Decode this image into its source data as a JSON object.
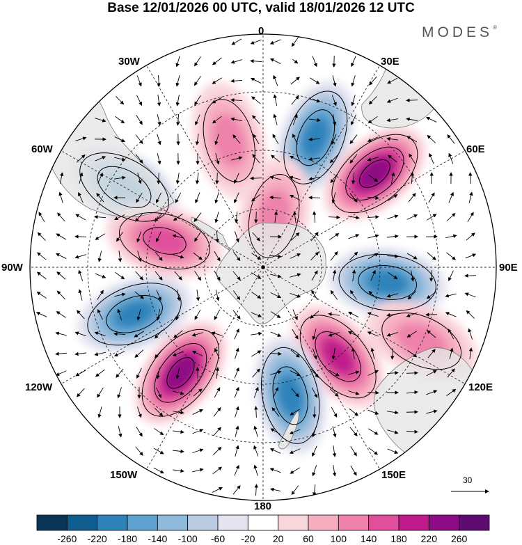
{
  "title": "Base 12/01/2026 00 UTC, valid 18/01/2026 12 UTC",
  "brand": "MODES",
  "brand_mark": "®",
  "longitude_labels": {
    "lon_0": "0",
    "lon_30E": "30E",
    "lon_60E": "60E",
    "lon_90E": "90E",
    "lon_120E": "120E",
    "lon_150E": "150E",
    "lon_180": "180",
    "lon_150W": "150W",
    "lon_120W": "120W",
    "lon_90W": "90W",
    "lon_60W": "60W",
    "lon_30W": "30W"
  },
  "vector_reference": {
    "value": "30"
  },
  "colorbar": {
    "ticks": [
      "-260",
      "-220",
      "-180",
      "-140",
      "-100",
      "-60",
      "-20",
      "20",
      "60",
      "100",
      "140",
      "180",
      "220",
      "260"
    ],
    "colors": [
      "#0b3557",
      "#0f5c8e",
      "#2f83bb",
      "#5ea3cf",
      "#8fb9da",
      "#bccce3",
      "#e4e4f1",
      "#ffffff",
      "#f9d5dc",
      "#f6aec1",
      "#ee82ab",
      "#df4f9c",
      "#c01b8c",
      "#8d0b84",
      "#5e0b72"
    ]
  },
  "chart_data": {
    "type": "polar-stereographic-map",
    "hemisphere": "south",
    "variable_range": [
      -260,
      260
    ],
    "anomalies": [
      {
        "lon_deg": 22,
        "colat_deg": 48,
        "sign": "negative",
        "peak": -200
      },
      {
        "lon_deg": 50,
        "colat_deg": 50,
        "sign": "positive",
        "peak": 220
      },
      {
        "lon_deg": 97,
        "colat_deg": 43,
        "sign": "negative",
        "peak": -180
      },
      {
        "lon_deg": 140,
        "colat_deg": 40,
        "sign": "positive",
        "peak": 180
      },
      {
        "lon_deg": 168,
        "colat_deg": 45,
        "sign": "negative",
        "peak": -200
      },
      {
        "lon_deg": 218,
        "colat_deg": 46,
        "sign": "positive",
        "peak": 220
      },
      {
        "lon_deg": 250,
        "colat_deg": 47,
        "sign": "negative",
        "peak": -200
      },
      {
        "lon_deg": 300,
        "colat_deg": 55,
        "sign": "negative",
        "peak": -200
      },
      {
        "lon_deg": 345,
        "colat_deg": 45,
        "sign": "positive",
        "peak": 100
      },
      {
        "lon_deg": 285,
        "colat_deg": 35,
        "sign": "positive",
        "peak": 140
      },
      {
        "lon_deg": 12,
        "colat_deg": 18,
        "sign": "positive",
        "peak": 120
      },
      {
        "lon_deg": 115,
        "colat_deg": 60,
        "sign": "positive",
        "peak": 100
      }
    ]
  }
}
